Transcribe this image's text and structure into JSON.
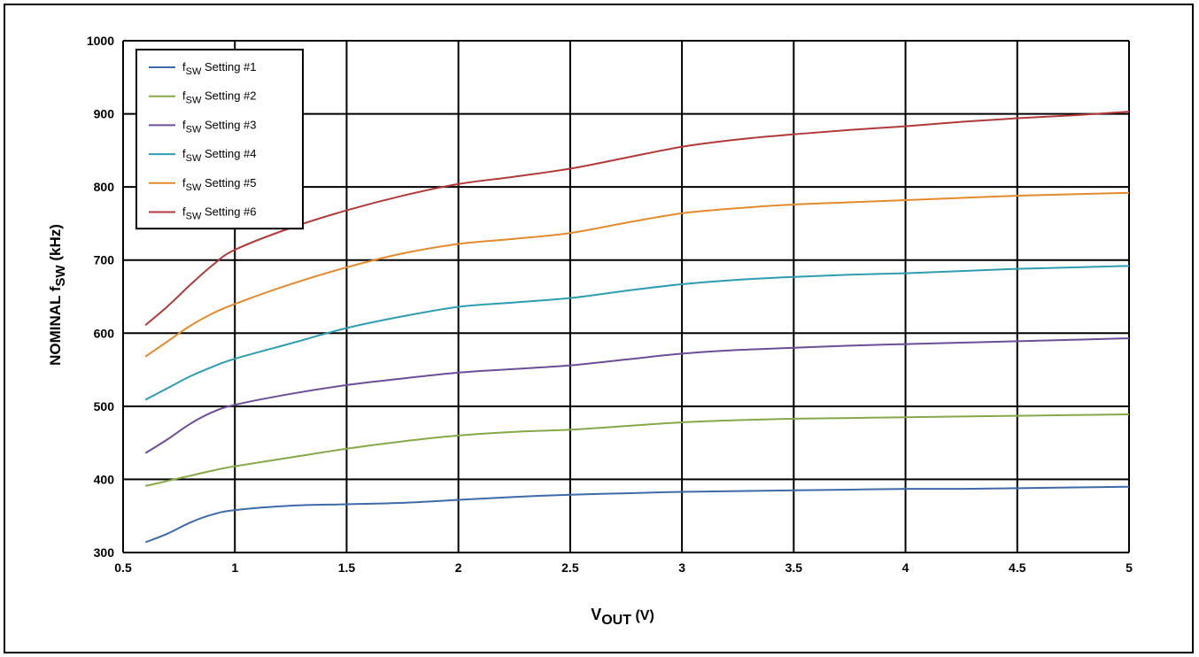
{
  "chart_data": {
    "type": "line",
    "xlabel": {
      "main": "V",
      "sub": "OUT",
      "unit": " (V)"
    },
    "ylabel": {
      "main": "NOMINAL f",
      "sub": "SW",
      "unit": " (kHz)"
    },
    "xlim": [
      0.5,
      5
    ],
    "ylim": [
      300,
      1000
    ],
    "x_ticks": [
      0.5,
      1,
      1.5,
      2,
      2.5,
      3,
      3.5,
      4,
      4.5,
      5
    ],
    "x_tick_labels": [
      "0.5",
      "1",
      "1.5",
      "2",
      "2.5",
      "3",
      "3.5",
      "4",
      "4.5",
      "5"
    ],
    "y_ticks": [
      300,
      400,
      500,
      600,
      700,
      800,
      900,
      1000
    ],
    "y_tick_labels": [
      "300",
      "400",
      "500",
      "600",
      "700",
      "800",
      "900",
      "1000"
    ],
    "grid": true,
    "legend_position": "top-left",
    "x": [
      0.6,
      0.7,
      0.8,
      0.9,
      1.0,
      1.25,
      1.5,
      1.75,
      2.0,
      2.25,
      2.5,
      2.75,
      3.0,
      3.25,
      3.5,
      3.75,
      4.0,
      4.25,
      4.5,
      4.75,
      5.0
    ],
    "series": [
      {
        "name": {
          "main": "f",
          "sub": "SW",
          "rest": " Setting #1"
        },
        "color": "#3f6aa8",
        "values": [
          314,
          326,
          341,
          352,
          358,
          364,
          366,
          368,
          372,
          376,
          379,
          381,
          383,
          384,
          385,
          386,
          387,
          387,
          388,
          389,
          390
        ]
      },
      {
        "name": {
          "main": "f",
          "sub": "SW",
          "rest": " Setting #2"
        },
        "color": "#86a84a",
        "values": [
          391,
          398,
          405,
          412,
          418,
          430,
          442,
          452,
          460,
          465,
          468,
          473,
          478,
          481,
          483,
          484,
          485,
          486,
          487,
          488,
          489
        ]
      },
      {
        "name": {
          "main": "f",
          "sub": "SW",
          "rest": " Setting #3"
        },
        "color": "#6b4f96",
        "values": [
          436,
          455,
          476,
          492,
          502,
          517,
          529,
          538,
          546,
          551,
          556,
          564,
          572,
          577,
          580,
          583,
          585,
          587,
          589,
          591,
          593
        ]
      },
      {
        "name": {
          "main": "f",
          "sub": "SW",
          "rest": " Setting #4"
        },
        "color": "#2f9cb0",
        "values": [
          509,
          525,
          541,
          554,
          565,
          586,
          607,
          623,
          636,
          642,
          648,
          658,
          667,
          673,
          677,
          680,
          682,
          685,
          688,
          690,
          692
        ]
      },
      {
        "name": {
          "main": "f",
          "sub": "SW",
          "rest": " Setting #5"
        },
        "color": "#e28a2e",
        "values": [
          568,
          589,
          610,
          627,
          640,
          667,
          690,
          709,
          722,
          729,
          737,
          751,
          764,
          771,
          776,
          779,
          782,
          785,
          788,
          790,
          792
        ]
      },
      {
        "name": {
          "main": "f",
          "sub": "SW",
          "rest": " Setting #6"
        },
        "color": "#b03a3a",
        "values": [
          611,
          637,
          666,
          693,
          714,
          744,
          768,
          788,
          804,
          814,
          825,
          840,
          855,
          865,
          872,
          878,
          883,
          889,
          894,
          898,
          903
        ]
      }
    ]
  }
}
